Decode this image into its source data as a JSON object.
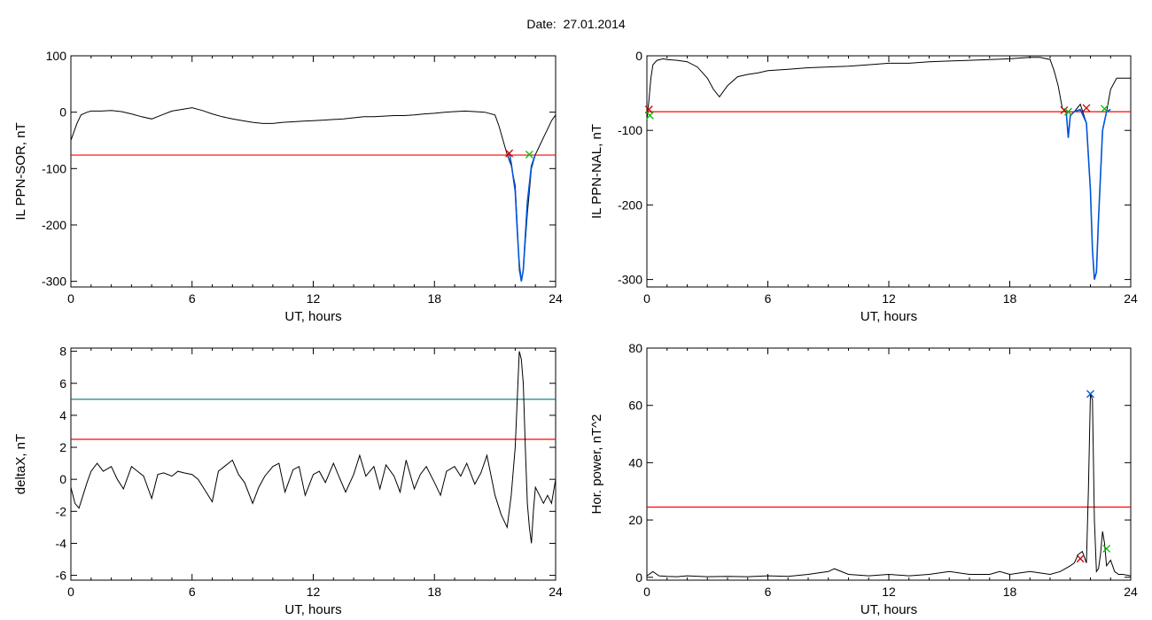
{
  "figure": {
    "title": "Date:  27.01.2014"
  },
  "chart_data": [
    {
      "id": "tl",
      "type": "line",
      "xlabel": "UT, hours",
      "ylabel": "IL PPN-SOR, nT",
      "xlim": [
        0,
        24
      ],
      "ylim": [
        -310,
        100
      ],
      "xticks": [
        0,
        6,
        12,
        18,
        24
      ],
      "yticks": [
        100,
        0,
        -100,
        -200,
        -300
      ],
      "x": [
        0,
        0.3,
        0.5,
        0.8,
        1.0,
        1.5,
        2,
        2.5,
        3,
        3.5,
        4,
        4.5,
        5,
        5.5,
        6,
        6.5,
        7,
        7.5,
        8,
        8.5,
        9,
        9.5,
        10,
        10.5,
        11,
        11.5,
        12,
        12.5,
        13,
        13.5,
        14,
        14.5,
        15,
        15.5,
        16,
        16.5,
        17,
        17.5,
        18,
        18.5,
        19,
        19.5,
        20,
        20.5,
        21,
        21.2,
        21.4,
        21.6,
        21.8,
        22,
        22.1,
        22.2,
        22.3,
        22.4,
        22.6,
        22.8,
        23,
        23.2,
        23.4,
        23.6,
        23.8,
        24
      ],
      "values": [
        -50,
        -20,
        -5,
        0,
        2,
        2,
        3,
        1,
        -3,
        -8,
        -12,
        -5,
        2,
        5,
        8,
        3,
        -3,
        -8,
        -12,
        -15,
        -18,
        -20,
        -20,
        -18,
        -17,
        -16,
        -15,
        -14,
        -13,
        -12,
        -10,
        -8,
        -8,
        -7,
        -6,
        -6,
        -5,
        -3,
        -2,
        0,
        1,
        2,
        1,
        0,
        -5,
        -25,
        -50,
        -75,
        -95,
        -130,
        -200,
        -280,
        -300,
        -280,
        -180,
        -100,
        -75,
        -60,
        -45,
        -30,
        -15,
        -5
      ],
      "hlines": [
        {
          "y": -76,
          "color": "#ff0000"
        }
      ],
      "highlight": {
        "x": [
          21.7,
          21.8,
          21.9,
          22,
          22.1,
          22.2,
          22.3,
          22.4,
          22.5,
          22.6,
          22.8,
          23.0
        ],
        "values": [
          -72,
          -90,
          -115,
          -140,
          -210,
          -270,
          -300,
          -280,
          -220,
          -160,
          -95,
          -75
        ],
        "color": "#0055dd"
      },
      "markers": [
        {
          "x": 21.7,
          "y": -73,
          "color": "#cc0000"
        },
        {
          "x": 22.7,
          "y": -75,
          "color": "#00bb00"
        }
      ]
    },
    {
      "id": "tr",
      "type": "line",
      "xlabel": "UT, hours",
      "ylabel": "IL PPN-NAL, nT",
      "xlim": [
        0,
        24
      ],
      "ylim": [
        -310,
        0
      ],
      "xticks": [
        0,
        6,
        12,
        18,
        24
      ],
      "yticks": [
        0,
        -100,
        -200,
        -300
      ],
      "x": [
        0,
        0.1,
        0.2,
        0.3,
        0.5,
        0.8,
        1,
        1.5,
        2,
        2.5,
        3,
        3.3,
        3.6,
        4,
        4.5,
        5,
        5.5,
        6,
        7,
        8,
        9,
        10,
        11,
        12,
        13,
        14,
        15,
        16,
        17,
        18,
        18.5,
        19,
        19.5,
        20,
        20.2,
        20.4,
        20.6,
        20.8,
        20.9,
        21,
        21.2,
        21.5,
        21.8,
        22,
        22.1,
        22.2,
        22.3,
        22.4,
        22.5,
        22.6,
        22.8,
        23,
        23.3,
        23.6,
        24
      ],
      "values": [
        -85,
        -60,
        -30,
        -12,
        -6,
        -4,
        -5,
        -6,
        -8,
        -15,
        -30,
        -45,
        -55,
        -40,
        -28,
        -25,
        -23,
        -20,
        -18,
        -16,
        -15,
        -14,
        -12,
        -10,
        -10,
        -8,
        -7,
        -6,
        -5,
        -4,
        -3,
        -2,
        -2,
        -5,
        -20,
        -40,
        -70,
        -75,
        -110,
        -80,
        -75,
        -65,
        -90,
        -180,
        -260,
        -300,
        -290,
        -220,
        -160,
        -100,
        -75,
        -45,
        -30,
        -30,
        -30
      ],
      "hlines": [
        {
          "y": -75,
          "color": "#ff0000"
        }
      ],
      "highlight": {
        "x": [
          20.8,
          20.9,
          21.0,
          21.2,
          21.5,
          21.8,
          22.0,
          22.1,
          22.2,
          22.3,
          22.4,
          22.5,
          22.6,
          22.8,
          23.0
        ],
        "values": [
          -75,
          -110,
          -80,
          -75,
          -72,
          -90,
          -180,
          -260,
          -300,
          -290,
          -220,
          -160,
          -100,
          -75,
          -72
        ],
        "color": "#0055dd"
      },
      "markers": [
        {
          "x": 0.1,
          "y": -72,
          "color": "#cc0000"
        },
        {
          "x": 0.15,
          "y": -80,
          "color": "#00bb00"
        },
        {
          "x": 20.7,
          "y": -73,
          "color": "#cc0000"
        },
        {
          "x": 20.9,
          "y": -75,
          "color": "#00bb00"
        },
        {
          "x": 21.8,
          "y": -70,
          "color": "#cc0000"
        },
        {
          "x": 22.7,
          "y": -71,
          "color": "#00bb00"
        }
      ]
    },
    {
      "id": "bl",
      "type": "line",
      "xlabel": "UT, hours",
      "ylabel": "deltaX, nT",
      "xlim": [
        0,
        24
      ],
      "ylim": [
        -6.3,
        8.2
      ],
      "xticks": [
        0,
        6,
        12,
        18,
        24
      ],
      "yticks": [
        8,
        6,
        4,
        2,
        0,
        -2,
        -4,
        -6
      ],
      "x": [
        0,
        0.2,
        0.4,
        0.6,
        0.8,
        1,
        1.3,
        1.6,
        2,
        2.3,
        2.6,
        3,
        3.3,
        3.6,
        4,
        4.3,
        4.6,
        5,
        5.3,
        5.6,
        6,
        6.3,
        6.6,
        7,
        7.3,
        7.6,
        8,
        8.3,
        8.6,
        9,
        9.3,
        9.6,
        10,
        10.3,
        10.6,
        11,
        11.3,
        11.6,
        12,
        12.3,
        12.6,
        13,
        13.3,
        13.6,
        14,
        14.3,
        14.6,
        15,
        15.3,
        15.6,
        16,
        16.3,
        16.6,
        17,
        17.3,
        17.6,
        18,
        18.3,
        18.6,
        19,
        19.3,
        19.6,
        20,
        20.3,
        20.6,
        21,
        21.3,
        21.6,
        21.8,
        22,
        22.1,
        22.2,
        22.3,
        22.4,
        22.5,
        22.6,
        22.7,
        22.8,
        22.9,
        23,
        23.2,
        23.4,
        23.6,
        23.8,
        24
      ],
      "values": [
        -0.5,
        -1.5,
        -1.8,
        -1.0,
        -0.2,
        0.5,
        1.0,
        0.5,
        0.8,
        0.0,
        -0.6,
        0.8,
        0.5,
        0.2,
        -1.2,
        0.3,
        0.4,
        0.2,
        0.5,
        0.4,
        0.3,
        0.0,
        -0.6,
        -1.4,
        0.5,
        0.8,
        1.2,
        0.3,
        -0.2,
        -1.5,
        -0.5,
        0.2,
        0.8,
        1.0,
        -0.8,
        0.6,
        0.8,
        -1.0,
        0.3,
        0.5,
        -0.2,
        1.0,
        0.1,
        -0.8,
        0.3,
        1.5,
        0.2,
        0.8,
        -0.6,
        0.9,
        0.2,
        -0.8,
        1.2,
        -0.6,
        0.3,
        0.8,
        -0.2,
        -1.0,
        0.5,
        0.8,
        0.2,
        1.0,
        -0.3,
        0.4,
        1.5,
        -1.0,
        -2.2,
        -3.0,
        -1.0,
        2.0,
        5.0,
        8.0,
        7.5,
        6.0,
        2.0,
        -1.5,
        -3.0,
        -4.0,
        -2.0,
        -0.5,
        -1.0,
        -1.5,
        -1.0,
        -1.5,
        0.0
      ],
      "hlines": [
        {
          "y": 5.0,
          "color": "#007777"
        },
        {
          "y": 2.5,
          "color": "#ff0000"
        }
      ],
      "markers": []
    },
    {
      "id": "br",
      "type": "line",
      "xlabel": "UT, hours",
      "ylabel": "Hor. power, nT^2",
      "xlim": [
        0,
        24
      ],
      "ylim": [
        -1,
        80
      ],
      "xticks": [
        0,
        6,
        12,
        18,
        24
      ],
      "yticks": [
        80,
        60,
        40,
        20,
        0
      ],
      "x": [
        0,
        0.3,
        0.6,
        1,
        1.5,
        2,
        3,
        4,
        5,
        6,
        7,
        8,
        9,
        9.3,
        10,
        11,
        12,
        13,
        14,
        15,
        16,
        17,
        17.5,
        18,
        19,
        20,
        20.5,
        21,
        21.2,
        21.4,
        21.6,
        21.8,
        21.9,
        22,
        22.1,
        22.2,
        22.3,
        22.4,
        22.5,
        22.6,
        22.7,
        22.8,
        23,
        23.2,
        23.4,
        23.6,
        24
      ],
      "values": [
        0.5,
        2,
        0.5,
        0.3,
        0.2,
        0.5,
        0.2,
        0.3,
        0.2,
        0.5,
        0.3,
        1,
        2,
        3,
        1,
        0.5,
        1,
        0.5,
        1,
        2,
        1,
        1,
        2,
        1,
        2,
        1,
        2,
        4,
        5,
        8,
        9,
        5,
        30,
        64,
        62,
        20,
        2,
        3,
        8,
        16,
        12,
        4,
        6,
        2,
        1,
        1,
        0.5
      ],
      "hlines": [
        {
          "y": 24.5,
          "color": "#ff0000"
        }
      ],
      "markers": [
        {
          "x": 21.5,
          "y": 6.5,
          "color": "#cc0000"
        },
        {
          "x": 22.0,
          "y": 64,
          "color": "#0055dd"
        },
        {
          "x": 22.8,
          "y": 10,
          "color": "#00bb00"
        }
      ]
    }
  ]
}
